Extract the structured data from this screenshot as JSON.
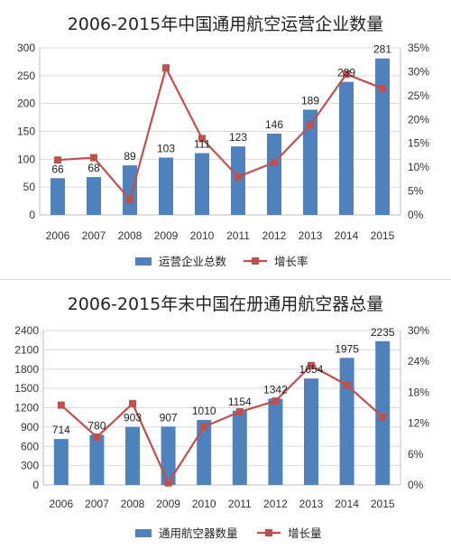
{
  "chart_data": [
    {
      "type": "bar",
      "title": "2006-2015年中国通用航空运营企业数量",
      "categories": [
        "2006",
        "2007",
        "2008",
        "2009",
        "2010",
        "2011",
        "2012",
        "2013",
        "2014",
        "2015"
      ],
      "series": [
        {
          "name": "运营企业总数",
          "type": "bar",
          "axis": "left",
          "color": "#4f81bd",
          "values": [
            66,
            68,
            89,
            103,
            111,
            123,
            146,
            189,
            239,
            281
          ]
        },
        {
          "name": "增长率",
          "type": "line",
          "axis": "right",
          "color": "#c0504d",
          "values": [
            11.5,
            12.0,
            3.2,
            30.8,
            16.0,
            8.0,
            11.0,
            18.8,
            29.5,
            26.5
          ]
        }
      ],
      "yleft": {
        "min": 0,
        "max": 300,
        "ticks": [
          "0",
          "50",
          "100",
          "150",
          "200",
          "250",
          "300"
        ]
      },
      "yright": {
        "min": 0,
        "max": 35,
        "ticks": [
          "0%",
          "5%",
          "10%",
          "15%",
          "20%",
          "25%",
          "30%",
          "35%"
        ]
      },
      "grid": true,
      "legend": "bottom"
    },
    {
      "type": "bar",
      "title": "2006-2015年末中国在册通用航空器总量",
      "categories": [
        "2006",
        "2007",
        "2008",
        "2009",
        "2010",
        "2011",
        "2012",
        "2013",
        "2014",
        "2015"
      ],
      "series": [
        {
          "name": "通用航空器数量",
          "type": "bar",
          "axis": "left",
          "color": "#4f81bd",
          "values": [
            714,
            780,
            903,
            907,
            1010,
            1154,
            1342,
            1654,
            1975,
            2235
          ]
        },
        {
          "name": "增长量",
          "type": "line",
          "axis": "right",
          "color": "#c0504d",
          "values": [
            15.5,
            9.3,
            15.8,
            0.4,
            11.3,
            14.2,
            16.3,
            23.2,
            19.4,
            13.2
          ]
        }
      ],
      "yleft": {
        "min": 0,
        "max": 2400,
        "ticks": [
          "0",
          "300",
          "600",
          "900",
          "1200",
          "1500",
          "1800",
          "2100",
          "2400"
        ]
      },
      "yright": {
        "min": 0,
        "max": 30,
        "ticks": [
          "0%",
          "6%",
          "12%",
          "18%",
          "24%",
          "30%"
        ]
      },
      "grid": true,
      "legend": "bottom"
    }
  ]
}
